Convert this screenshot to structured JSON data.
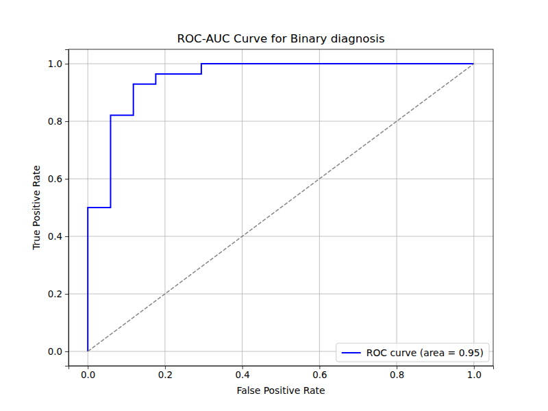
{
  "chart_data": {
    "type": "line",
    "title": "ROC-AUC Curve for Binary diagnosis",
    "x_label": "False Positive Rate",
    "y_label": "True Positive Rate",
    "series": [
      {
        "name": "ROC curve (area = 0.95)",
        "color": "#0000ff",
        "line_style": "solid",
        "x": [
          0,
          0,
          0.059,
          0.059,
          0.118,
          0.118,
          0.176,
          0.176,
          0.294,
          0.294,
          1
        ],
        "values": [
          0,
          0.5,
          0.5,
          0.821,
          0.821,
          0.929,
          0.929,
          0.964,
          0.964,
          1,
          1
        ]
      },
      {
        "color": "#808080",
        "line_style": "dashed",
        "x": [
          0,
          1
        ],
        "values": [
          0,
          1
        ]
      }
    ],
    "xlim": [
      -0.05,
      1.05
    ],
    "ylim": [
      -0.05,
      1.05
    ],
    "xticks": [
      {
        "value": 0,
        "label": "0.0"
      },
      {
        "value": 0.2,
        "label": "0.2"
      },
      {
        "value": 0.4,
        "label": "0.4"
      },
      {
        "value": 0.6,
        "label": "0.6"
      },
      {
        "value": 0.8,
        "label": "0.8"
      },
      {
        "value": 1,
        "label": "1.0"
      }
    ],
    "yticks": [
      {
        "value": 0,
        "label": "0.0"
      },
      {
        "value": 0.2,
        "label": "0.2"
      },
      {
        "value": 0.4,
        "label": "0.4"
      },
      {
        "value": 0.6,
        "label": "0.6"
      },
      {
        "value": 0.8,
        "label": "0.8"
      },
      {
        "value": 1,
        "label": "1.0"
      }
    ],
    "grid": true,
    "legend": "lower right"
  }
}
